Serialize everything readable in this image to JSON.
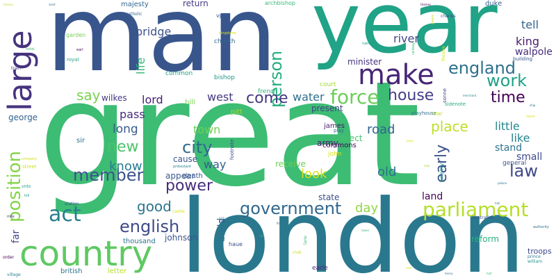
{
  "cloud": {
    "words": [
      {
        "text": "great",
        "color": "#3dbc74"
      },
      {
        "text": "london",
        "color": "#2a788e"
      },
      {
        "text": "man",
        "color": "#39568c"
      },
      {
        "text": "year",
        "color": "#20a386"
      },
      {
        "text": "large",
        "color": "#46337e"
      },
      {
        "text": "country",
        "color": "#5ec962"
      },
      {
        "text": "make",
        "color": "#482677"
      },
      {
        "text": "position",
        "color": "#84d44b"
      },
      {
        "text": "parliament",
        "color": "#b5de2b"
      },
      {
        "text": "government",
        "color": "#31688e"
      },
      {
        "text": "force",
        "color": "#6ccd5a"
      },
      {
        "text": "england",
        "color": "#2d708e"
      },
      {
        "text": "act",
        "color": "#277f8e"
      },
      {
        "text": "english",
        "color": "#3e4a89"
      },
      {
        "text": "member",
        "color": "#3b528b"
      },
      {
        "text": "power",
        "color": "#472d7b"
      },
      {
        "text": "city",
        "color": "#2f6b8e"
      },
      {
        "text": "work",
        "color": "#1fa187"
      },
      {
        "text": "time",
        "color": "#440154"
      },
      {
        "text": "law",
        "color": "#3f4889"
      },
      {
        "text": "house",
        "color": "#433e85"
      },
      {
        "text": "person",
        "color": "#26ad81"
      },
      {
        "text": "new",
        "color": "#4ec36b"
      },
      {
        "text": "come",
        "color": "#453781"
      },
      {
        "text": "early",
        "color": "#3b528b"
      },
      {
        "text": "place",
        "color": "#bddf26"
      },
      {
        "text": "look",
        "color": "#d8e219"
      },
      {
        "text": "good",
        "color": "#2a768e"
      },
      {
        "text": "know",
        "color": "#287c8e"
      },
      {
        "text": "day",
        "color": "#8fd744"
      },
      {
        "text": "old",
        "color": "#2d708e"
      },
      {
        "text": "little",
        "color": "#23888e"
      },
      {
        "text": "like",
        "color": "#25858e"
      },
      {
        "text": "say",
        "color": "#7ad151"
      },
      {
        "text": "long",
        "color": "#365c8d"
      },
      {
        "text": "road",
        "color": "#32658e"
      },
      {
        "text": "town",
        "color": "#74d055"
      },
      {
        "text": "way",
        "color": "#34608d"
      },
      {
        "text": "river",
        "color": "#404688"
      },
      {
        "text": "water",
        "color": "#2e6f8e"
      },
      {
        "text": "tell",
        "color": "#33638d"
      },
      {
        "text": "bridge",
        "color": "#3b528b"
      },
      {
        "text": "lord",
        "color": "#482173"
      },
      {
        "text": "west",
        "color": "#443983"
      },
      {
        "text": "king",
        "color": "#481a6c"
      },
      {
        "text": "pass",
        "color": "#472a7a"
      },
      {
        "text": "land",
        "color": "#440154"
      },
      {
        "text": "stand",
        "color": "#2c738e"
      },
      {
        "text": "small",
        "color": "#3e4989"
      },
      {
        "text": "far",
        "color": "#3f4889"
      },
      {
        "text": "life",
        "color": "#35b779"
      },
      {
        "text": "build",
        "color": "#2c738e"
      },
      {
        "text": "walpole",
        "color": "#472c7a"
      },
      {
        "text": "present",
        "color": "#424186"
      },
      {
        "text": "receive",
        "color": "#6ece58"
      },
      {
        "text": "state",
        "color": "#3d4e8a"
      },
      {
        "text": "george",
        "color": "#33638d"
      },
      {
        "text": "johnson",
        "color": "#3a548c"
      },
      {
        "text": "army",
        "color": "#482071"
      },
      {
        "text": "minister",
        "color": "#46337e"
      },
      {
        "text": "cause",
        "color": "#3a548c"
      },
      {
        "text": "appear",
        "color": "#375a8c"
      },
      {
        "text": "return",
        "color": "#453882"
      },
      {
        "text": "wilkes",
        "color": "#453882"
      },
      {
        "text": "subject",
        "color": "#4ac16d"
      },
      {
        "text": "reform",
        "color": "#2ab07f"
      },
      {
        "text": "troops",
        "color": "#3f4788"
      },
      {
        "text": "majesty",
        "color": "#31678e"
      },
      {
        "text": "duke",
        "color": "#33628d"
      },
      {
        "text": "thousand",
        "color": "#2b748e"
      },
      {
        "text": "death",
        "color": "#3a538b"
      },
      {
        "text": "james",
        "color": "#481b6d"
      },
      {
        "text": "commons",
        "color": "#440154"
      },
      {
        "text": "sir",
        "color": "#2c728e"
      },
      {
        "text": "bill",
        "color": "#7ad151"
      },
      {
        "text": "pitt",
        "color": "#a8db34"
      },
      {
        "text": "iii",
        "color": "#3f4889"
      },
      {
        "text": "letter",
        "color": "#b5de2b"
      },
      {
        "text": "british",
        "color": "#2c738e"
      },
      {
        "text": "church",
        "color": "#31678e"
      },
      {
        "text": "bishop",
        "color": "#1f9a8a"
      },
      {
        "text": "common",
        "color": "#1fa188"
      },
      {
        "text": "general",
        "color": "#3a548c"
      },
      {
        "text": "french",
        "color": "#31b57b"
      },
      {
        "text": "john",
        "color": "#d8e219"
      },
      {
        "text": "court",
        "color": "#a5db36"
      },
      {
        "text": "play",
        "color": "#33638d"
      },
      {
        "text": "earle",
        "color": "#482878"
      },
      {
        "text": "haue",
        "color": "#3d4d8a"
      },
      {
        "text": "enemy",
        "color": "#21918c"
      },
      {
        "text": "garden",
        "color": "#75d054"
      },
      {
        "text": "royal",
        "color": "#1fa088"
      },
      {
        "text": "building",
        "color": "#3a548c"
      },
      {
        "text": "vpon",
        "color": "#38598c"
      },
      {
        "text": "archbishop",
        "color": "#35b779"
      },
      {
        "text": "sidenote",
        "color": "#25ab82"
      },
      {
        "text": "playhouse",
        "color": "#2e6e8e"
      },
      {
        "text": "sonne",
        "color": "#404588"
      },
      {
        "text": "war",
        "color": "#c2df23"
      },
      {
        "text": "footnote",
        "color": "#3e4989"
      },
      {
        "text": "street",
        "color": "#d0e11c"
      },
      {
        "text": "station",
        "color": "#3b528b"
      },
      {
        "text": "castle",
        "color": "#d8e219"
      },
      {
        "text": "train",
        "color": "#46327e"
      },
      {
        "text": "village",
        "color": "#26828e"
      },
      {
        "text": "theatre",
        "color": "#d0e11c"
      },
      {
        "text": "charles",
        "color": "#3a548c"
      },
      {
        "text": "catholic",
        "color": "#33638d"
      },
      {
        "text": "william",
        "color": "#1f978b"
      },
      {
        "text": "lane",
        "color": "#35b779"
      },
      {
        "text": "club",
        "color": "#c8e020"
      },
      {
        "text": "prince",
        "color": "#2a788e"
      },
      {
        "text": "order",
        "color": "#440154"
      },
      {
        "text": "hill",
        "color": "#21908d"
      },
      {
        "text": "illustration",
        "color": "#3b528b"
      },
      {
        "text": "authority",
        "color": "#2e6e8e"
      },
      {
        "text": "protestant",
        "color": "#26828e"
      },
      {
        "text": "company",
        "color": "#d0e11c"
      },
      {
        "text": "vnto",
        "color": "#1f968b"
      },
      {
        "text": "hotel",
        "color": "#3dbc74"
      },
      {
        "text": "railway",
        "color": "#3dbc74"
      },
      {
        "text": "kingdome",
        "color": "#d8e219"
      },
      {
        "text": "yeare",
        "color": "#c8e020"
      },
      {
        "text": "nation",
        "color": "#1f9e89"
      },
      {
        "text": "earl",
        "color": "#440154"
      },
      {
        "text": "mile",
        "color": "#482878"
      },
      {
        "text": "room",
        "color": "#d8e219"
      },
      {
        "text": "merchant",
        "color": "#26828e"
      },
      {
        "text": "palace",
        "color": "#2a788e"
      },
      {
        "text": "honour",
        "color": "#b5de2b"
      },
      {
        "text": "henry",
        "color": "#2c728e"
      },
      {
        "text": "lady",
        "color": "#a5db36"
      },
      {
        "text": "east",
        "color": "#c8e020"
      },
      {
        "text": "pope",
        "color": "#d8e219"
      },
      {
        "text": "ship",
        "color": "#2e6e8e"
      },
      {
        "text": "fire",
        "color": "#33638d"
      },
      {
        "text": "rich",
        "color": "#3dbc74"
      },
      {
        "text": "hall",
        "color": "#26828e"
      },
      {
        "text": "saint",
        "color": "#2c728e"
      },
      {
        "text": "thames",
        "color": "#440154"
      },
      {
        "text": "tower",
        "color": "#35b779"
      },
      {
        "text": "half",
        "color": "#3dbc74"
      }
    ]
  }
}
